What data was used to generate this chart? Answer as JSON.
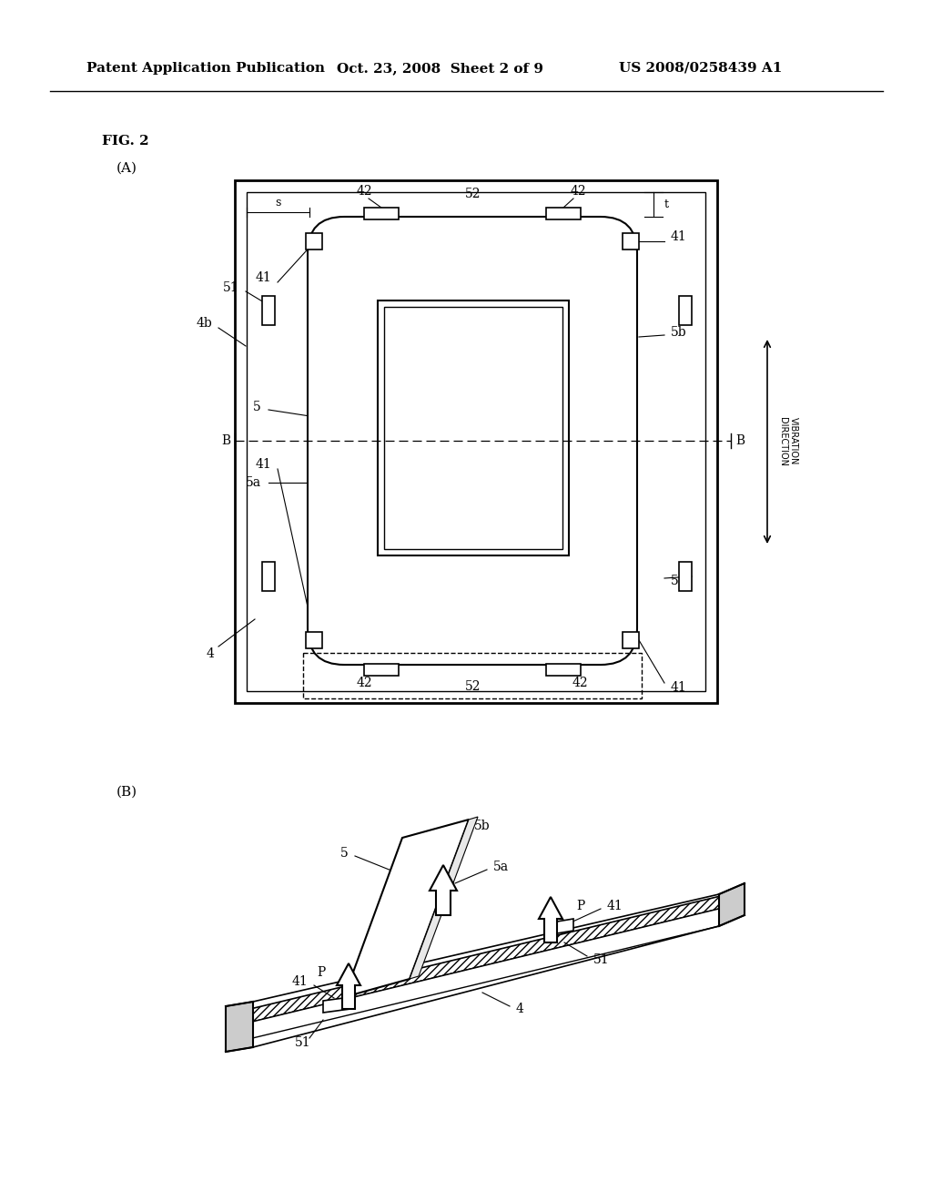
{
  "bg_color": "#ffffff",
  "header_left": "Patent Application Publication",
  "header_mid": "Oct. 23, 2008  Sheet 2 of 9",
  "header_right": "US 2008/0258439 A1",
  "fig_label": "FIG. 2",
  "sub_A": "(A)",
  "sub_B": "(B)"
}
